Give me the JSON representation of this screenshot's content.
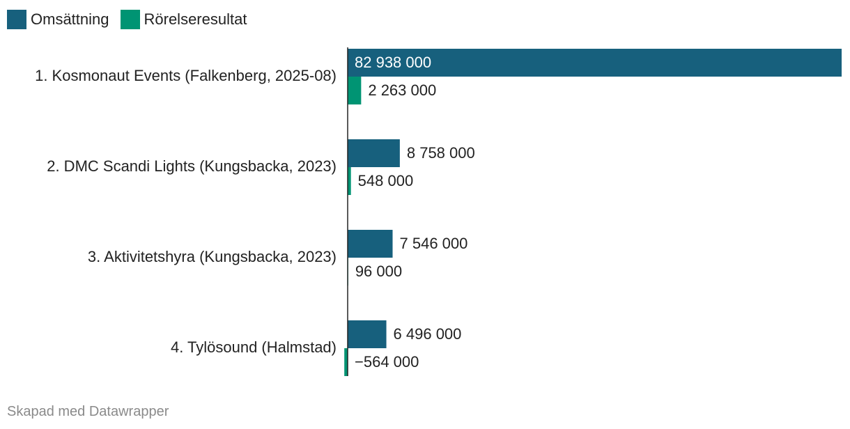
{
  "legend": {
    "items": [
      {
        "label": "Omsättning",
        "color": "#17607d"
      },
      {
        "label": "Rörelseresultat",
        "color": "#009473"
      }
    ]
  },
  "chart_data": {
    "type": "bar",
    "orientation": "horizontal",
    "categories": [
      "1. Kosmonaut Events (Falkenberg, 2025-08)",
      "2. DMC Scandi Lights (Kungsbacka, 2023)",
      "3. Aktivitetshyra (Kungsbacka, 2023)",
      "4. Tylösound (Halmstad)"
    ],
    "series": [
      {
        "name": "Omsättning",
        "color": "#17607d",
        "values": [
          82938000,
          8758000,
          7546000,
          6496000
        ],
        "labels": [
          "82 938 000",
          "8 758 000",
          "7 546 000",
          "6 496 000"
        ]
      },
      {
        "name": "Rörelseresultat",
        "color": "#009473",
        "values": [
          2263000,
          548000,
          96000,
          -564000
        ],
        "labels": [
          "2 263 000",
          "548 000",
          "96 000",
          "−564 000"
        ]
      }
    ],
    "xlim": [
      -564000,
      82938000
    ],
    "grid": false,
    "legend_position": "top-left"
  },
  "footer": {
    "credit": "Skapad med Datawrapper"
  }
}
